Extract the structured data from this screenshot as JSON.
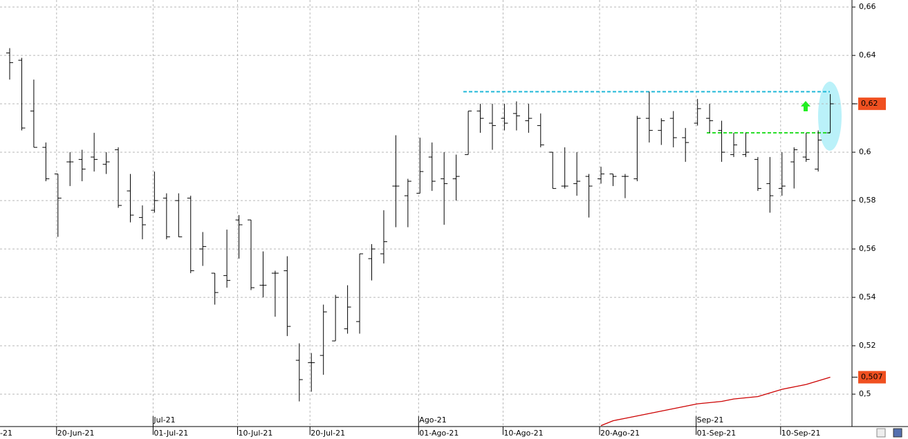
{
  "chart_data": {
    "type": "ohlc",
    "categories": [
      null,
      null,
      null,
      null,
      "20-Jun-21",
      null,
      null,
      null,
      null,
      null,
      null,
      null,
      "01-Jul-21",
      null,
      null,
      null,
      null,
      null,
      null,
      "10-Jul-21",
      null,
      null,
      null,
      null,
      null,
      "20-Jul-21",
      null,
      null,
      null,
      null,
      null,
      null,
      null,
      null,
      "01-Ago-21",
      null,
      null,
      null,
      null,
      null,
      null,
      "10-Ago-21",
      null,
      null,
      null,
      null,
      null,
      null,
      null,
      "20-Ago-21",
      null,
      null,
      null,
      null,
      null,
      null,
      null,
      "01-Sep-21",
      null,
      null,
      null,
      null,
      null,
      null,
      "10-Sep-21",
      null,
      null,
      null,
      null
    ],
    "months": [
      null,
      null,
      null,
      null,
      null,
      null,
      null,
      null,
      null,
      null,
      null,
      null,
      "Jul-21",
      null,
      null,
      null,
      null,
      null,
      null,
      null,
      null,
      null,
      null,
      null,
      null,
      null,
      null,
      null,
      null,
      null,
      null,
      null,
      null,
      null,
      "Ago-21",
      null,
      null,
      null,
      null,
      null,
      null,
      null,
      null,
      null,
      null,
      null,
      null,
      null,
      null,
      null,
      null,
      null,
      null,
      null,
      null,
      null,
      null,
      "Sep-21",
      null,
      null,
      null,
      null,
      null,
      null,
      null,
      null,
      null,
      null,
      null
    ],
    "cut_label": "-21",
    "series": [
      {
        "color": "#000000",
        "last_label": "0,62",
        "label_color": "#f05020",
        "open": [
          0.641,
          0.638,
          0.617,
          0.602,
          0.591,
          0.596,
          0.597,
          0.598,
          0.595,
          0.601,
          0.584,
          0.573,
          0.576,
          0.581,
          0.58,
          0.581,
          0.56,
          0.55,
          0.549,
          0.572,
          0.572,
          0.545,
          0.55,
          0.551,
          0.514,
          0.513,
          0.516,
          0.522,
          0.527,
          0.53,
          0.556,
          0.558,
          0.586,
          0.582,
          0.583,
          0.598,
          0.589,
          0.589,
          0.599,
          0.617,
          0.612,
          0.614,
          0.616,
          0.613,
          0.611,
          0.6,
          0.586,
          0.587,
          0.59,
          0.589,
          0.591,
          0.59,
          0.589,
          0.614,
          0.609,
          0.614,
          0.606,
          0.612,
          0.614,
          0.609,
          0.599,
          0.599,
          0.597,
          0.587,
          0.585,
          0.596,
          0.598,
          0.593,
          0.608
        ],
        "high": [
          0.643,
          0.639,
          0.63,
          0.604,
          0.591,
          0.6,
          0.601,
          0.608,
          0.6,
          0.602,
          0.591,
          0.578,
          0.592,
          0.583,
          0.583,
          0.582,
          0.567,
          0.55,
          0.568,
          0.574,
          0.572,
          0.559,
          0.551,
          0.557,
          0.521,
          0.517,
          0.537,
          0.541,
          0.545,
          0.558,
          0.562,
          0.576,
          0.607,
          0.589,
          0.606,
          0.604,
          0.6,
          0.599,
          0.617,
          0.62,
          0.62,
          0.62,
          0.621,
          0.62,
          0.616,
          0.6,
          0.602,
          0.6,
          0.591,
          0.594,
          0.591,
          0.591,
          0.615,
          0.625,
          0.614,
          0.617,
          0.61,
          0.622,
          0.62,
          0.613,
          0.608,
          0.608,
          0.598,
          0.598,
          0.6,
          0.602,
          0.608,
          0.609,
          0.624
        ],
        "low": [
          0.63,
          0.609,
          0.602,
          0.588,
          0.565,
          0.586,
          0.588,
          0.592,
          0.591,
          0.577,
          0.571,
          0.564,
          0.575,
          0.564,
          0.565,
          0.55,
          0.553,
          0.537,
          0.544,
          0.556,
          0.543,
          0.54,
          0.532,
          0.524,
          0.497,
          0.501,
          0.508,
          0.522,
          0.525,
          0.525,
          0.547,
          0.554,
          0.569,
          0.569,
          0.583,
          0.584,
          0.57,
          0.58,
          0.599,
          0.608,
          0.601,
          0.609,
          0.609,
          0.608,
          0.602,
          0.585,
          0.585,
          0.582,
          0.573,
          0.587,
          0.586,
          0.581,
          0.588,
          0.604,
          0.603,
          0.602,
          0.596,
          0.611,
          0.608,
          0.596,
          0.598,
          0.598,
          0.584,
          0.575,
          0.582,
          0.585,
          0.596,
          0.592,
          0.608
        ],
        "close": [
          0.637,
          0.61,
          0.602,
          0.589,
          0.581,
          0.596,
          0.593,
          0.597,
          0.596,
          0.578,
          0.574,
          0.57,
          0.58,
          0.565,
          0.565,
          0.551,
          0.561,
          0.542,
          0.547,
          0.57,
          0.544,
          0.545,
          0.55,
          0.528,
          0.506,
          0.513,
          0.534,
          0.54,
          0.536,
          0.558,
          0.56,
          0.563,
          0.586,
          0.588,
          0.592,
          0.588,
          0.587,
          0.59,
          0.617,
          0.614,
          0.611,
          0.612,
          0.615,
          0.614,
          0.603,
          0.585,
          0.586,
          0.588,
          0.586,
          0.591,
          0.59,
          0.59,
          0.614,
          0.609,
          0.613,
          0.606,
          0.604,
          0.618,
          0.613,
          0.6,
          0.603,
          0.6,
          0.585,
          0.582,
          0.586,
          0.601,
          0.597,
          0.605,
          0.62
        ]
      },
      {
        "color": "#cc0000",
        "last_label": "0,507",
        "label_color": "#f05020",
        "values": [
          null,
          null,
          null,
          null,
          null,
          null,
          null,
          null,
          null,
          null,
          null,
          null,
          null,
          null,
          null,
          null,
          null,
          null,
          null,
          null,
          null,
          null,
          null,
          null,
          null,
          null,
          null,
          null,
          null,
          null,
          null,
          null,
          null,
          null,
          null,
          null,
          null,
          null,
          null,
          null,
          null,
          null,
          null,
          null,
          null,
          null,
          null,
          null,
          null,
          0.487,
          0.489,
          0.49,
          0.491,
          0.492,
          0.493,
          0.494,
          0.495,
          0.496,
          0.4965,
          0.497,
          0.498,
          0.4985,
          0.499,
          0.5005,
          0.502,
          0.503,
          0.504,
          0.5055,
          0.507
        ]
      }
    ],
    "levels": [
      {
        "value": 0.625,
        "color": "#20b8d8"
      },
      {
        "value": 0.608,
        "color": "#22dd22"
      }
    ],
    "ylim": [
      0.4866,
      0.6629
    ],
    "yticks": [
      {
        "value": 0.66,
        "label": "0,66"
      },
      {
        "value": 0.64,
        "label": "0,64"
      },
      {
        "value": 0.62,
        "label": "0,62"
      },
      {
        "value": 0.6,
        "label": "0,6"
      },
      {
        "value": 0.58,
        "label": "0,58"
      },
      {
        "value": 0.56,
        "label": "0,56"
      },
      {
        "value": 0.54,
        "label": "0,54"
      },
      {
        "value": 0.52,
        "label": "0,52"
      },
      {
        "value": 0.5,
        "label": "0,5"
      }
    ],
    "grid": true
  }
}
